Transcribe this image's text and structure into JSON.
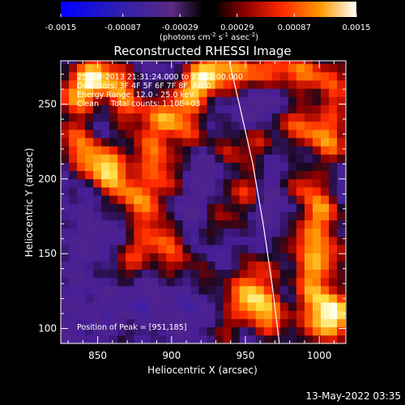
{
  "chart_data": {
    "type": "heatmap",
    "title": "Reconstructed RHESSI Image",
    "xlabel": "Heliocentric X (arcsec)",
    "ylabel": "Heliocentric Y (arcsec)",
    "xlim": [
      825,
      1018
    ],
    "ylim": [
      90,
      279
    ],
    "x_ticks": [
      850,
      900,
      950,
      1000
    ],
    "y_ticks": [
      100,
      150,
      200,
      250
    ],
    "colorbar": {
      "label_main": "(photons cm",
      "label_exp1": "-2",
      "label_mid": " s",
      "label_exp2": "-1",
      "label_end": " asec",
      "label_exp3": "-2",
      "label_close": ")",
      "range": [
        -0.0015,
        0.0015
      ],
      "ticks": [
        "-0.0015",
        "-0.00087",
        "-0.00029",
        "0.00029",
        "0.00087",
        "0.0015"
      ],
      "colormap": [
        "#0000ff",
        "#3c1aa0",
        "#5a2585",
        "#000000",
        "#8b0000",
        "#ff3300",
        "#ff9900",
        "#ffffff"
      ]
    },
    "annotations": [
      "25-Apr-2013 21:31:24.000 to 21:32:00.000",
      "Detectors: 3F 4F 5F 6F 7F 8F, Att 0",
      "Energy Range: 12.0 - 25.0 keV",
      "Clean     Total counts: 1.10E+03"
    ],
    "peak_text": "Position of Peak = [951,185]",
    "peak": [
      951,
      185
    ],
    "limb": [
      [
        939,
        279
      ],
      [
        947,
        245
      ],
      [
        955,
        210
      ],
      [
        962,
        170
      ],
      [
        968,
        130
      ],
      [
        973,
        90
      ]
    ],
    "blobs": [
      {
        "x": 846,
        "y": 270,
        "v": 0.8
      },
      {
        "x": 835,
        "y": 255,
        "v": 0.7
      },
      {
        "x": 862,
        "y": 264,
        "v": 0.6
      },
      {
        "x": 872,
        "y": 248,
        "v": 0.5
      },
      {
        "x": 897,
        "y": 240,
        "v": 0.75
      },
      {
        "x": 912,
        "y": 256,
        "v": 0.6
      },
      {
        "x": 922,
        "y": 268,
        "v": 0.7
      },
      {
        "x": 932,
        "y": 276,
        "v": 0.5
      },
      {
        "x": 950,
        "y": 270,
        "v": 0.55
      },
      {
        "x": 967,
        "y": 275,
        "v": 0.4
      },
      {
        "x": 985,
        "y": 272,
        "v": 0.55
      },
      {
        "x": 1005,
        "y": 268,
        "v": 0.5
      },
      {
        "x": 1012,
        "y": 250,
        "v": 0.35
      },
      {
        "x": 832,
        "y": 228,
        "v": 0.45
      },
      {
        "x": 845,
        "y": 215,
        "v": 0.6
      },
      {
        "x": 858,
        "y": 205,
        "v": 0.8
      },
      {
        "x": 872,
        "y": 190,
        "v": 0.55
      },
      {
        "x": 885,
        "y": 178,
        "v": 0.45
      },
      {
        "x": 890,
        "y": 213,
        "v": 0.5
      },
      {
        "x": 896,
        "y": 196,
        "v": 0.4
      },
      {
        "x": 880,
        "y": 154,
        "v": 0.35
      },
      {
        "x": 868,
        "y": 142,
        "v": 0.3
      },
      {
        "x": 895,
        "y": 160,
        "v": 0.4
      },
      {
        "x": 905,
        "y": 145,
        "v": 0.35
      },
      {
        "x": 940,
        "y": 217,
        "v": 0.35
      },
      {
        "x": 948,
        "y": 192,
        "v": 0.45
      },
      {
        "x": 958,
        "y": 225,
        "v": 0.3
      },
      {
        "x": 935,
        "y": 172,
        "v": 0.3
      },
      {
        "x": 980,
        "y": 238,
        "v": 0.4
      },
      {
        "x": 998,
        "y": 232,
        "v": 0.55
      },
      {
        "x": 1010,
        "y": 222,
        "v": 0.45
      },
      {
        "x": 990,
        "y": 195,
        "v": 0.5
      },
      {
        "x": 1002,
        "y": 178,
        "v": 0.65
      },
      {
        "x": 990,
        "y": 160,
        "v": 0.5
      },
      {
        "x": 1005,
        "y": 150,
        "v": 0.55
      },
      {
        "x": 993,
        "y": 138,
        "v": 0.45
      },
      {
        "x": 998,
        "y": 122,
        "v": 0.6
      },
      {
        "x": 1010,
        "y": 110,
        "v": 0.85
      },
      {
        "x": 1000,
        "y": 100,
        "v": 0.5
      },
      {
        "x": 951,
        "y": 122,
        "v": 0.65
      },
      {
        "x": 960,
        "y": 115,
        "v": 0.5
      },
      {
        "x": 970,
        "y": 105,
        "v": 0.45
      },
      {
        "x": 960,
        "y": 140,
        "v": 0.4
      },
      {
        "x": 925,
        "y": 128,
        "v": 0.3
      },
      {
        "x": 935,
        "y": 100,
        "v": 0.3
      },
      {
        "x": 872,
        "y": 100,
        "v": 0.25
      },
      {
        "x": 880,
        "y": 225,
        "v": 0.3
      },
      {
        "x": 915,
        "y": 230,
        "v": 0.35
      },
      {
        "x": 925,
        "y": 205,
        "v": -0.25
      },
      {
        "x": 880,
        "y": 115,
        "v": -0.35
      },
      {
        "x": 915,
        "y": 115,
        "v": -0.4
      },
      {
        "x": 960,
        "y": 250,
        "v": -0.3
      },
      {
        "x": 970,
        "y": 185,
        "v": -0.2
      },
      {
        "x": 905,
        "y": 182,
        "v": -0.2
      },
      {
        "x": 850,
        "y": 160,
        "v": -0.15
      },
      {
        "x": 860,
        "y": 110,
        "v": -0.3
      }
    ]
  },
  "footer": {
    "timestamp": "13-May-2022 03:35"
  }
}
